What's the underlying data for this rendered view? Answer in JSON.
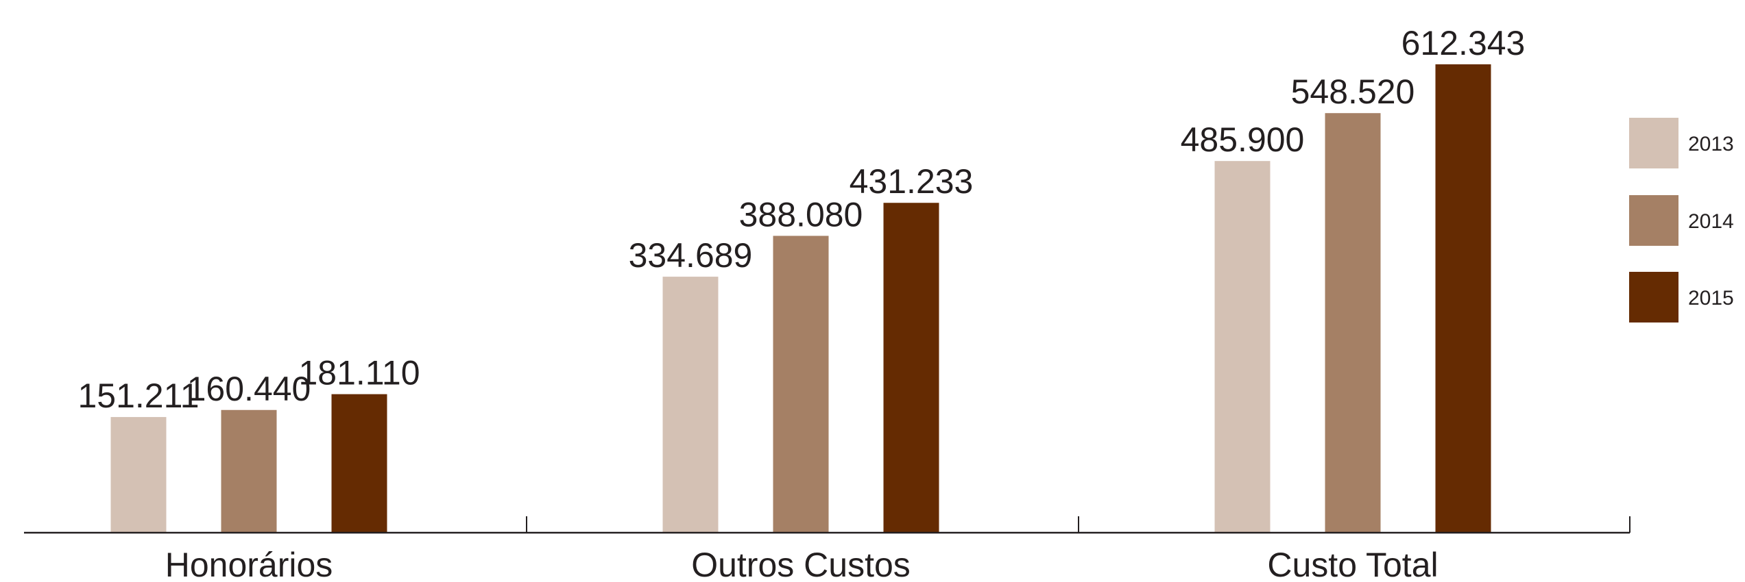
{
  "chart_data": {
    "type": "bar",
    "categories": [
      "Honorários",
      "Outros Custos",
      "Custo Total"
    ],
    "series": [
      {
        "name": "2013",
        "color": "#d4c1b4",
        "values": [
          151211,
          334689,
          485900
        ],
        "labels": [
          "151.211",
          "334.689",
          "485.900"
        ]
      },
      {
        "name": "2014",
        "color": "#a58065",
        "values": [
          160440,
          388080,
          548520
        ],
        "labels": [
          "160.440",
          "388.080",
          "548.520"
        ]
      },
      {
        "name": "2015",
        "color": "#652b02",
        "values": [
          181110,
          431233,
          612343
        ],
        "labels": [
          "181.110",
          "431.233",
          "612.343"
        ]
      }
    ],
    "legend_position": "right",
    "grid": false,
    "axes_visible": false
  }
}
